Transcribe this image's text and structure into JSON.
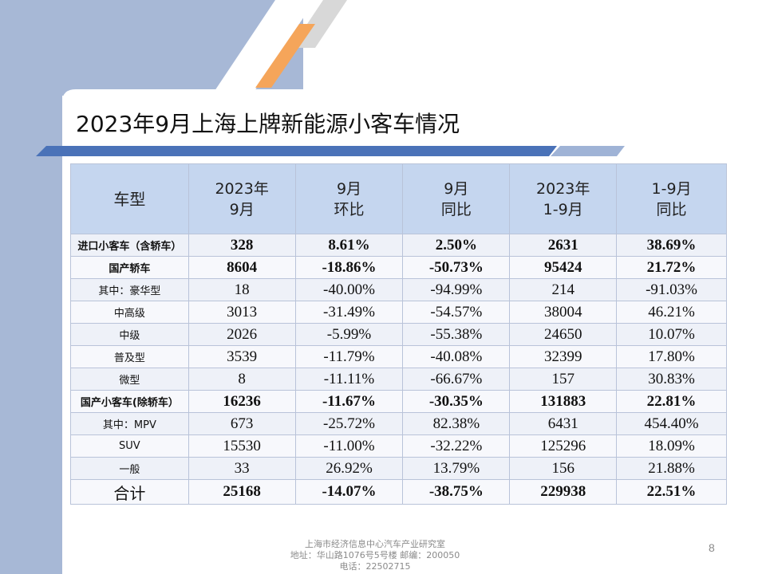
{
  "slide": {
    "title": "2023年9月上海上牌新能源小客车情况",
    "page_number": "8"
  },
  "table": {
    "headers": [
      [
        "车型"
      ],
      [
        "2023年",
        "9月"
      ],
      [
        "9月",
        "环比"
      ],
      [
        "9月",
        "同比"
      ],
      [
        "2023年",
        "1-9月"
      ],
      [
        "1-9月",
        "同比"
      ]
    ],
    "rows": [
      {
        "cells": [
          "进口小客车（含轿车）",
          "328",
          "8.61%",
          "2.50%",
          "2631",
          "38.69%"
        ]
      },
      {
        "cells": [
          "国产轿车",
          "8604",
          "-18.86%",
          "-50.73%",
          "95424",
          "21.72%"
        ]
      },
      {
        "cells": [
          "其中：豪华型",
          "18",
          "-40.00%",
          "-94.99%",
          "214",
          "-91.03%"
        ]
      },
      {
        "cells": [
          "中高级",
          "3013",
          "-31.49%",
          "-54.57%",
          "38004",
          "46.21%"
        ]
      },
      {
        "cells": [
          "中级",
          "2026",
          "-5.99%",
          "-55.38%",
          "24650",
          "10.07%"
        ]
      },
      {
        "cells": [
          "普及型",
          "3539",
          "-11.79%",
          "-40.08%",
          "32399",
          "17.80%"
        ]
      },
      {
        "cells": [
          "微型",
          "8",
          "-11.11%",
          "-66.67%",
          "157",
          "30.83%"
        ]
      },
      {
        "cells": [
          "国产小客车(除轿车）",
          "16236",
          "-11.67%",
          "-30.35%",
          "131883",
          "22.81%"
        ]
      },
      {
        "cells": [
          "其中：MPV",
          "673",
          "-25.72%",
          "82.38%",
          "6431",
          "454.40%"
        ]
      },
      {
        "cells": [
          "SUV",
          "15530",
          "-11.00%",
          "-32.22%",
          "125296",
          "18.09%"
        ]
      },
      {
        "cells": [
          "一般",
          "33",
          "26.92%",
          "13.79%",
          "156",
          "21.88%"
        ]
      },
      {
        "cells": [
          "合计",
          "25168",
          "-14.07%",
          "-38.75%",
          "229938",
          "22.51%"
        ]
      }
    ]
  },
  "footer": {
    "line1": "上海市经济信息中心汽车产业研究室",
    "line2": "地址：华山路1076号5号楼    邮编：200050",
    "line3": "电话：22502715"
  },
  "colors": {
    "band": "#a7b8d6",
    "header_fill": "#c5d6ef",
    "accent_orange": "#f5a55a",
    "accent_blue": "#4a72b8"
  }
}
